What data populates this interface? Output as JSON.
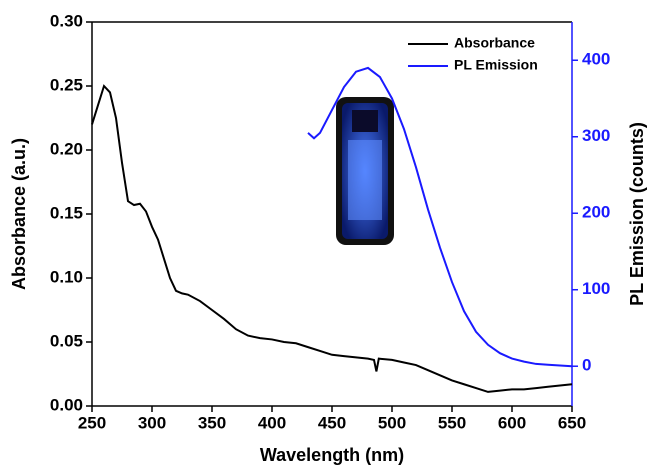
{
  "chart_data": {
    "type": "line",
    "x_label": "Wavelength (nm)",
    "y_label": "Absorbance (a.u.)",
    "y2_label": "PL Emission (counts)",
    "xlim": [
      250,
      650
    ],
    "xticks": [
      250,
      300,
      350,
      400,
      450,
      500,
      550,
      600,
      650
    ],
    "ylim": [
      0,
      0.3
    ],
    "yticks": [
      {
        "value": 0,
        "label": "0.00"
      },
      0.05,
      {
        "value": 0.1,
        "label": "0.10"
      },
      0.15,
      {
        "value": 0.2,
        "label": "0.20"
      },
      0.25,
      {
        "value": 0.3,
        "label": "0.30"
      }
    ],
    "y2lim": [
      -52,
      450
    ],
    "y2ticks": [
      0,
      100,
      200,
      300,
      400
    ],
    "legend": "upper right",
    "series": [
      {
        "name": "Absorbance",
        "color": "#000000",
        "x": [
          250,
          255,
          260,
          265,
          270,
          275,
          280,
          285,
          290,
          295,
          300,
          305,
          310,
          315,
          320,
          325,
          330,
          340,
          350,
          360,
          370,
          380,
          390,
          400,
          410,
          420,
          430,
          440,
          450,
          460,
          470,
          480,
          485,
          487,
          489,
          500,
          510,
          520,
          530,
          540,
          550,
          560,
          570,
          580,
          590,
          600,
          610,
          620,
          630,
          640,
          650
        ],
        "values": [
          0.22,
          0.235,
          0.25,
          0.245,
          0.225,
          0.19,
          0.16,
          0.157,
          0.158,
          0.152,
          0.14,
          0.13,
          0.115,
          0.1,
          0.09,
          0.088,
          0.087,
          0.082,
          0.075,
          0.068,
          0.06,
          0.055,
          0.053,
          0.052,
          0.05,
          0.049,
          0.046,
          0.043,
          0.04,
          0.039,
          0.038,
          0.037,
          0.036,
          0.027,
          0.037,
          0.036,
          0.034,
          0.032,
          0.028,
          0.024,
          0.02,
          0.017,
          0.014,
          0.011,
          0.012,
          0.013,
          0.013,
          0.014,
          0.015,
          0.016,
          0.017
        ]
      },
      {
        "name": "PL Emission",
        "color": "#1a1aff",
        "axis": "y2",
        "x": [
          430,
          435,
          440,
          450,
          460,
          470,
          480,
          490,
          500,
          510,
          520,
          530,
          540,
          550,
          560,
          570,
          580,
          590,
          600,
          610,
          620,
          630,
          640,
          650
        ],
        "values": [
          305,
          298,
          305,
          335,
          365,
          385,
          390,
          378,
          350,
          310,
          260,
          205,
          155,
          110,
          72,
          45,
          28,
          17,
          10,
          6,
          3,
          2,
          1,
          0
        ]
      }
    ]
  }
}
